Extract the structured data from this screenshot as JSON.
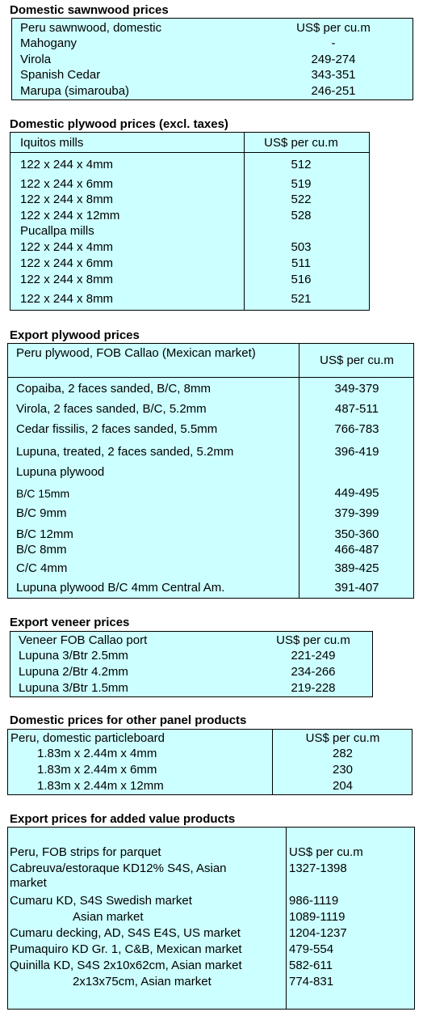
{
  "s1": {
    "title": "Domestic sawnwood prices",
    "header": [
      "Peru sawnwood, domestic",
      "US$ per cu.m"
    ],
    "rows": [
      [
        "Mahogany",
        "-"
      ],
      [
        "Virola",
        "249-274"
      ],
      [
        "Spanish Cedar",
        "343-351"
      ],
      [
        "Marupa (simarouba)",
        "246-251"
      ]
    ]
  },
  "s2": {
    "title": "Domestic plywood prices (excl. taxes)",
    "header": [
      "Iquitos mills",
      "US$ per cu.m"
    ],
    "rows": [
      [
        "122 x 244 x 4mm",
        "512"
      ],
      [
        "122 x 244 x 6mm",
        "519"
      ],
      [
        "122 x 244 x 8mm",
        "522"
      ],
      [
        "122 x 244 x 12mm",
        "528"
      ],
      [
        "Pucallpa mills",
        ""
      ],
      [
        "122 x 244 x 4mm",
        "503"
      ],
      [
        "122 x 244 x 6mm",
        "511"
      ],
      [
        "122 x 244 x 8mm",
        "516"
      ],
      [
        "122 x 244 x 8mm",
        "521"
      ]
    ]
  },
  "s3": {
    "title": "Export plywood prices",
    "header": [
      "Peru plywood, FOB Callao (Mexican market)",
      "US$ per cu.m"
    ],
    "rows": [
      [
        "Copaiba, 2 faces sanded, B/C, 8mm",
        "349-379"
      ],
      [
        "Virola, 2 faces sanded, B/C, 5.2mm",
        "487-511"
      ],
      [
        "Cedar fissilis, 2 faces sanded, 5.5mm",
        "766-783"
      ],
      [
        "Lupuna, treated, 2 faces sanded, 5.2mm",
        "396-419"
      ],
      [
        "Lupuna plywood",
        ""
      ],
      [
        "B/C 15mm",
        "449-495"
      ],
      [
        "B/C 9mm",
        "379-399"
      ],
      [
        "B/C 12mm",
        "350-360"
      ],
      [
        "B/C 8mm",
        "466-487"
      ],
      [
        "C/C 4mm",
        "389-425"
      ],
      [
        "Lupuna plywood B/C 4mm Central Am.",
        "391-407"
      ]
    ]
  },
  "s4": {
    "title": "Export veneer prices",
    "header": [
      "Veneer  FOB Callao port",
      "US$ per cu.m"
    ],
    "rows": [
      [
        "Lupuna 3/Btr 2.5mm",
        "221-249"
      ],
      [
        "Lupuna 2/Btr 4.2mm",
        "234-266"
      ],
      [
        "Lupuna 3/Btr 1.5mm",
        "219-228"
      ]
    ]
  },
  "s5": {
    "title": "Domestic prices for other panel products",
    "header": [
      "Peru, domestic particleboard",
      "US$ per cu.m"
    ],
    "rows": [
      [
        "1.83m x 2.44m x 4mm",
        "282"
      ],
      [
        "1.83m x 2.44m x 6mm",
        "230"
      ],
      [
        "1.83m x 2.44m x 12mm",
        "204"
      ]
    ]
  },
  "s6": {
    "title": "Export prices for added value products",
    "header": [
      "Peru, FOB strips for parquet",
      "US$ per cu.m"
    ],
    "rows": [
      [
        "Cabreuva/estoraque KD12% S4S, Asian market",
        "1327-1398"
      ],
      [
        "Cumaru KD, S4S     Swedish market",
        "986-1119"
      ],
      [
        "Asian market",
        "1089-1119"
      ],
      [
        "Cumaru decking, AD, S4S E4S,  US market",
        "1204-1237"
      ],
      [
        "Pumaquiro KD Gr. 1, C&B,  Mexican market",
        "479-554"
      ],
      [
        "Quinilla KD, S4S 2x10x62cm,  Asian market",
        "582-611"
      ],
      [
        "2x13x75cm, Asian market",
        "774-831"
      ]
    ]
  }
}
